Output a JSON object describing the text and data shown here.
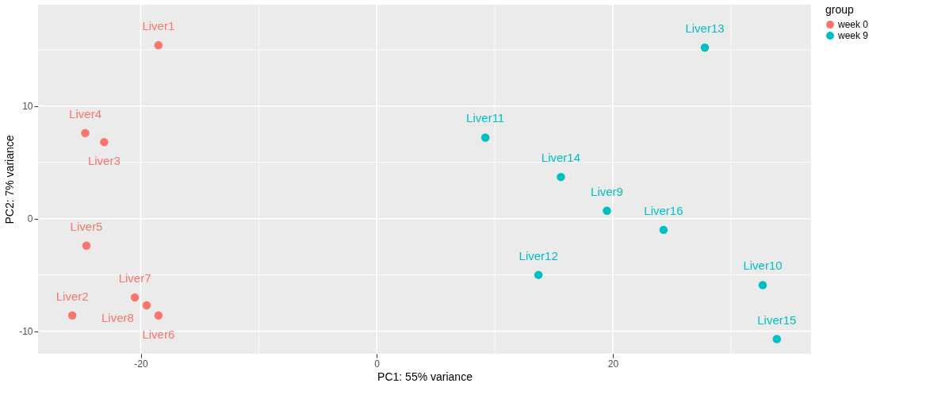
{
  "chart_data": {
    "type": "scatter",
    "xlabel": "PC1: 55% variance",
    "ylabel": "PC2: 7% variance",
    "legend_title": "group",
    "legend": "right",
    "grid": true,
    "marker": "circle",
    "xlim": [
      -28.7,
      36.8
    ],
    "ylim": [
      -12.0,
      19.0
    ],
    "xticks": [
      -20,
      {
        "value": -10,
        "label": null
      },
      0,
      {
        "value": 10,
        "label": null
      },
      20,
      {
        "value": 30,
        "label": null
      }
    ],
    "yticks": [
      {
        "value": -5,
        "label": null
      },
      -10,
      0,
      {
        "value": 5,
        "label": null
      },
      10,
      {
        "value": 15,
        "label": null
      }
    ],
    "series": [
      {
        "name": "week 0",
        "color": "#f8766d",
        "x": [
          -18.5,
          -25.8,
          -23.1,
          -24.7,
          -24.6,
          -18.5,
          -20.5,
          -19.5
        ],
        "values": [
          15.4,
          -8.6,
          6.8,
          7.6,
          -2.4,
          -8.6,
          -7.0,
          -7.7
        ]
      },
      {
        "name": "week 9",
        "color": "#00bfc4",
        "x": [
          19.5,
          32.7,
          9.2,
          13.7,
          27.8,
          15.6,
          33.9,
          24.3
        ],
        "values": [
          0.7,
          -5.9,
          7.2,
          -5.0,
          15.2,
          3.7,
          -10.7,
          -1.0
        ]
      }
    ],
    "annotations": [
      {
        "text": "Liver1",
        "x": -18.5,
        "y": 15.4
      },
      {
        "text": "Liver2",
        "x": -25.8,
        "y": -8.6
      },
      {
        "text": "Liver3",
        "x": -23.1,
        "y": 6.8
      },
      {
        "text": "Liver4",
        "x": -24.7,
        "y": 7.6
      },
      {
        "text": "Liver5",
        "x": -24.6,
        "y": -2.4
      },
      {
        "text": "Liver6",
        "x": -18.5,
        "y": -8.6
      },
      {
        "text": "Liver7",
        "x": -20.5,
        "y": -7.0
      },
      {
        "text": "Liver8",
        "x": -19.5,
        "y": -7.7
      },
      {
        "text": "Liver9",
        "x": 19.5,
        "y": 0.7
      },
      {
        "text": "Liver10",
        "x": 32.7,
        "y": -5.9
      },
      {
        "text": "Liver11",
        "x": 9.2,
        "y": 7.2
      },
      {
        "text": "Liver12",
        "x": 13.7,
        "y": -5.0
      },
      {
        "text": "Liver13",
        "x": 27.8,
        "y": 15.2
      },
      {
        "text": "Liver14",
        "x": 15.6,
        "y": 3.7
      },
      {
        "text": "Liver15",
        "x": 33.9,
        "y": -10.7
      },
      {
        "text": "Liver16",
        "x": 24.3,
        "y": -1.0
      }
    ]
  }
}
